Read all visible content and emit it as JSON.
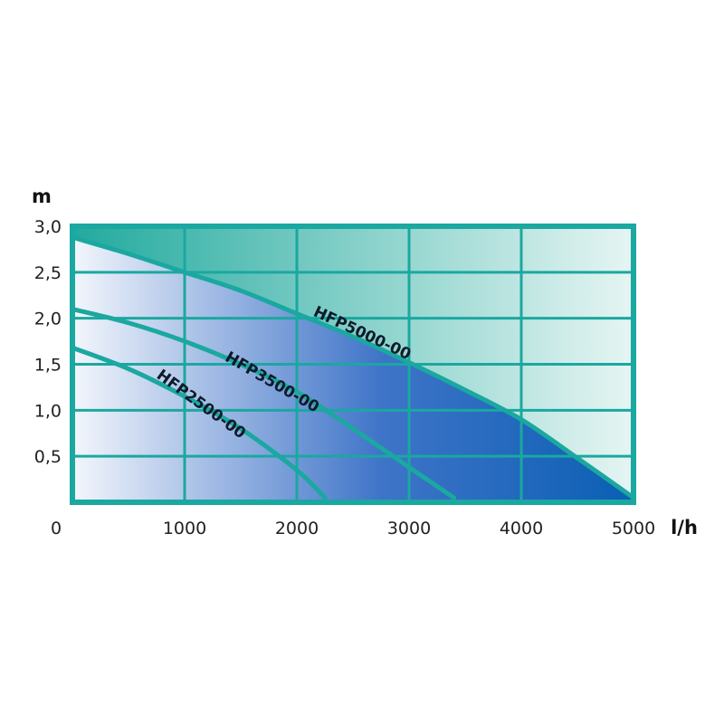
{
  "chart_data": {
    "type": "line",
    "xlabel": "l/h",
    "ylabel": "m",
    "xlim": [
      0,
      5000
    ],
    "ylim": [
      0,
      3.0
    ],
    "x_ticks": [
      "0",
      "1000",
      "2000",
      "3000",
      "4000",
      "5000"
    ],
    "y_ticks": [
      "0,5",
      "1,0",
      "1,5",
      "2,0",
      "2,5",
      "3,0"
    ],
    "origin_label": "0",
    "grid": true,
    "series": [
      {
        "name": "HFP5000-00",
        "x": [
          0,
          500,
          1000,
          1500,
          2000,
          2500,
          3000,
          3500,
          4000,
          4500,
          5000
        ],
        "y": [
          2.88,
          2.7,
          2.5,
          2.3,
          2.05,
          1.8,
          1.52,
          1.22,
          0.9,
          0.48,
          0.05
        ]
      },
      {
        "name": "HFP3500-00",
        "x": [
          0,
          500,
          1000,
          1500,
          2000,
          2500,
          3000,
          3400
        ],
        "y": [
          2.1,
          1.95,
          1.75,
          1.5,
          1.2,
          0.8,
          0.38,
          0.05
        ]
      },
      {
        "name": "HFP2500-00",
        "x": [
          0,
          500,
          1000,
          1500,
          2000,
          2250
        ],
        "y": [
          1.68,
          1.45,
          1.15,
          0.8,
          0.35,
          0.05
        ]
      }
    ],
    "colors": {
      "frame": "#1aa8a0",
      "fill_dark": "#0a5fb4",
      "fill_light": "#f3f6fc",
      "teal_dark": "#22aa9e",
      "teal_light": "#e6f5f3"
    }
  }
}
